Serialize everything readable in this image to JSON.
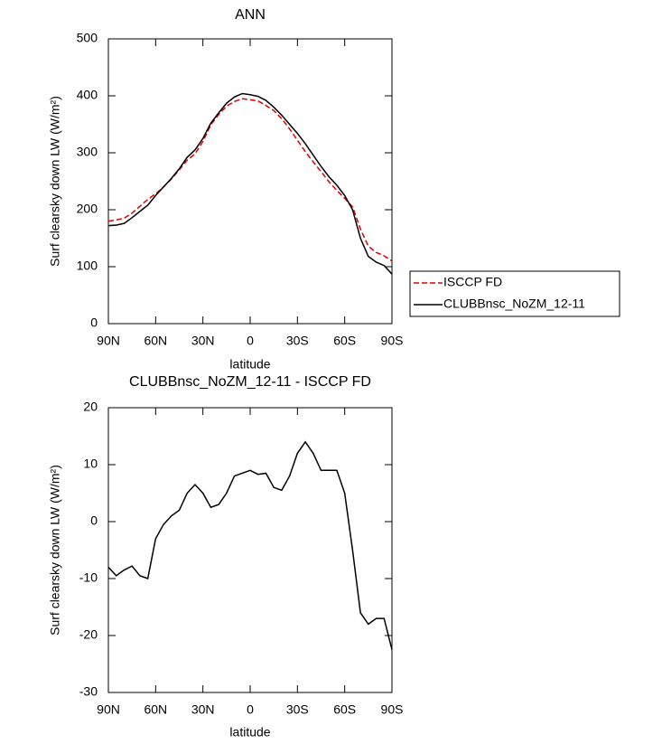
{
  "chart_data": [
    {
      "type": "line",
      "title": "ANN",
      "x_label": "latitude",
      "y_label": "Surf clearsky down LW (W/m²)",
      "x": [
        90,
        85,
        80,
        75,
        70,
        65,
        60,
        55,
        50,
        45,
        40,
        35,
        30,
        25,
        20,
        15,
        10,
        5,
        0,
        -5,
        -10,
        -15,
        -20,
        -25,
        -30,
        -35,
        -40,
        -45,
        -50,
        -55,
        -60,
        -65,
        -70,
        -75,
        -80,
        -85,
        -90
      ],
      "xlim": [
        90,
        -90
      ],
      "xticks": [
        {
          "value": 90,
          "label": "90N"
        },
        {
          "value": 60,
          "label": "60N"
        },
        {
          "value": 30,
          "label": "30N"
        },
        0,
        {
          "value": -30,
          "label": "30S"
        },
        {
          "value": -60,
          "label": "60S"
        },
        {
          "value": -90,
          "label": "90S"
        }
      ],
      "ylim": [
        0,
        500
      ],
      "yticks": [
        0,
        100,
        200,
        300,
        400,
        500
      ],
      "legend": "right",
      "series": [
        {
          "name": "ISCCP FD",
          "color": "#e00000",
          "style": "dashed",
          "values": [
            180,
            182,
            185,
            194,
            206,
            218,
            228,
            240,
            254,
            270,
            287,
            298,
            320,
            349,
            367,
            382,
            390,
            395,
            393,
            391,
            383,
            374,
            360,
            342,
            322,
            302,
            284,
            267,
            249,
            234,
            220,
            205,
            166,
            136,
            125,
            119,
            110
          ]
        },
        {
          "name": "CLUBBnsc_NoZM_12-11",
          "color": "#000000",
          "style": "solid",
          "values": [
            172,
            173,
            176,
            186,
            197,
            208,
            225,
            240,
            255,
            272,
            292,
            305,
            325,
            352,
            370,
            387,
            398,
            404,
            402,
            399,
            392,
            380,
            366,
            350,
            334,
            316,
            296,
            276,
            258,
            243,
            225,
            200,
            150,
            118,
            108,
            102,
            87
          ]
        }
      ]
    },
    {
      "type": "line",
      "title": "CLUBBnsc_NoZM_12-11 - ISCCP FD",
      "x_label": "latitude",
      "y_label": "Surf clearsky down LW (W/m²)",
      "x": [
        90,
        85,
        80,
        75,
        70,
        65,
        60,
        55,
        50,
        45,
        40,
        35,
        30,
        25,
        20,
        15,
        10,
        5,
        0,
        -5,
        -10,
        -15,
        -20,
        -25,
        -30,
        -35,
        -40,
        -45,
        -50,
        -55,
        -60,
        -65,
        -70,
        -75,
        -80,
        -85,
        -90
      ],
      "xlim": [
        90,
        -90
      ],
      "xticks": [
        {
          "value": 90,
          "label": "90N"
        },
        {
          "value": 60,
          "label": "60N"
        },
        {
          "value": 30,
          "label": "30N"
        },
        0,
        {
          "value": -30,
          "label": "30S"
        },
        {
          "value": -60,
          "label": "60S"
        },
        {
          "value": -90,
          "label": "90S"
        }
      ],
      "ylim": [
        -30,
        20
      ],
      "yticks": [
        -30,
        -20,
        -10,
        0,
        10,
        20
      ],
      "series": [
        {
          "color": "#000000",
          "style": "solid",
          "values": [
            -8,
            -9.5,
            -8.5,
            -7.8,
            -9.5,
            -10,
            -3,
            -0.5,
            1,
            2,
            5,
            6.5,
            5,
            2.5,
            3,
            5,
            8,
            8.5,
            9,
            8.3,
            8.5,
            6,
            5.5,
            8,
            12,
            14,
            12,
            9,
            9,
            9,
            5,
            -5,
            -16,
            -18,
            -17,
            -17,
            -22.5
          ]
        }
      ]
    }
  ]
}
